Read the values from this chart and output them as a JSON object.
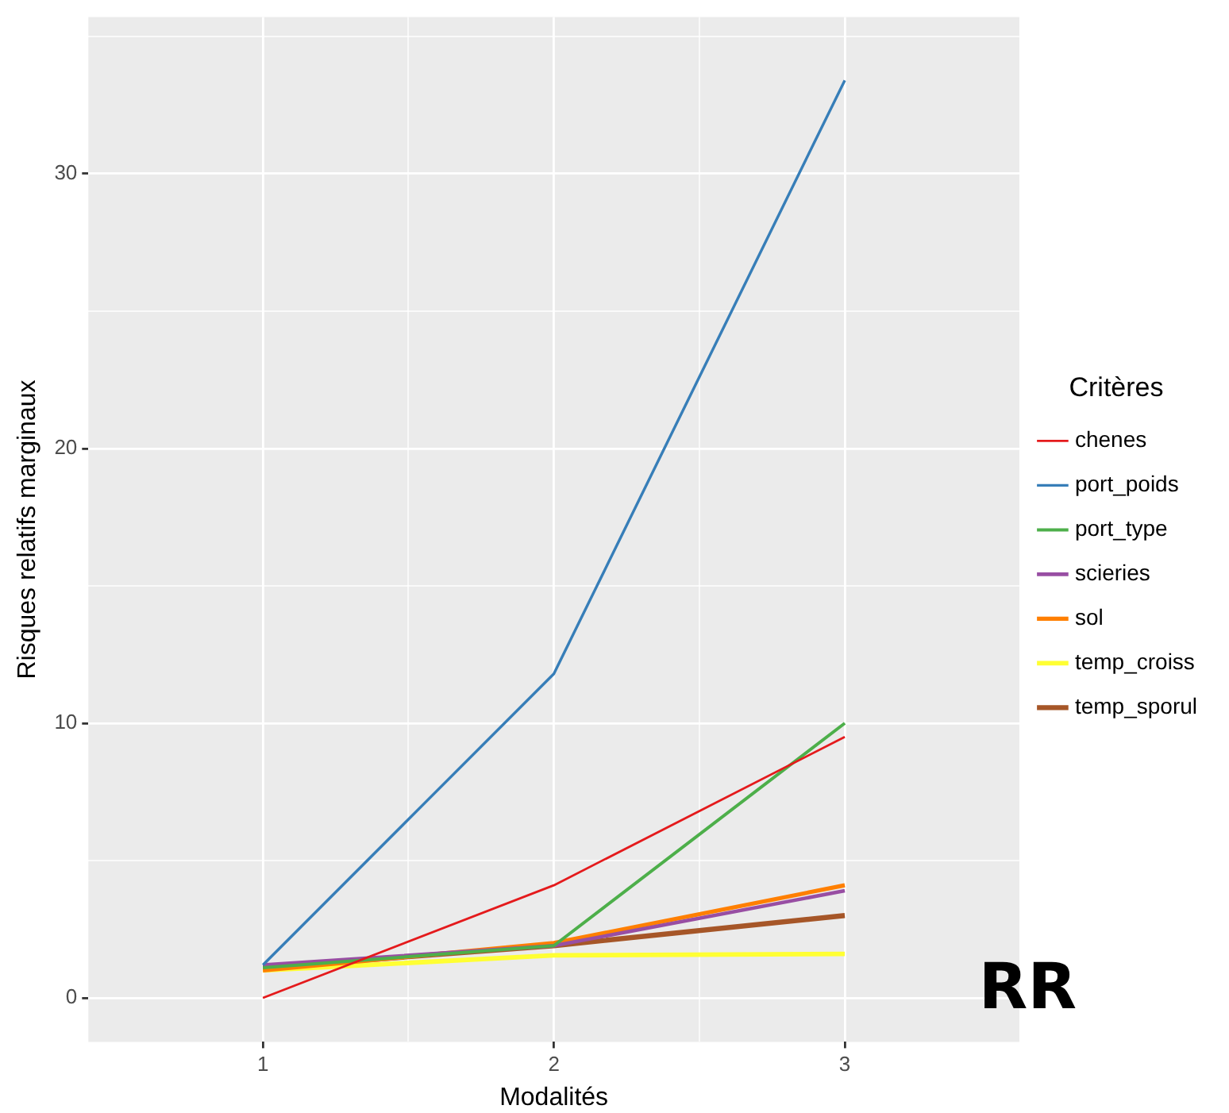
{
  "chart_data": {
    "type": "line",
    "xlabel": "Modalités",
    "ylabel": "Risques relatifs marginaux",
    "legend_title": "Critères",
    "legend": "right",
    "grid": true,
    "marker": "none",
    "line_style": "solid",
    "x": [
      1,
      2,
      3
    ],
    "xlim": [
      0.4,
      3.6
    ],
    "xticks": [
      1,
      {
        "value": 1.5,
        "label": null
      },
      2,
      {
        "value": 2.5,
        "label": null
      },
      3
    ],
    "ylim": [
      -1.6,
      35.7
    ],
    "yticks": [
      0,
      {
        "value": 5,
        "label": null
      },
      10,
      {
        "value": 15,
        "label": null
      },
      20,
      {
        "value": 25,
        "label": null
      },
      30,
      {
        "value": 35,
        "label": null
      }
    ],
    "series": [
      {
        "name": "chenes",
        "color": "#e41a1c",
        "values": [
          0,
          4.1,
          9.5
        ]
      },
      {
        "name": "port_poids",
        "color": "#377eb8",
        "values": [
          1.2,
          11.8,
          33.4
        ]
      },
      {
        "name": "port_type",
        "color": "#4daf4a",
        "values": [
          1.1,
          1.9,
          10
        ]
      },
      {
        "name": "scieries",
        "color": "#984ea3",
        "values": [
          1.2,
          1.9,
          3.9
        ]
      },
      {
        "name": "sol",
        "color": "#ff7f00",
        "values": [
          1.0,
          2.0,
          4.1
        ]
      },
      {
        "name": "temp_croiss",
        "color": "#ffff33",
        "values": [
          1.0,
          1.55,
          1.6
        ]
      },
      {
        "name": "temp_sporul",
        "color": "#a65628",
        "values": [
          1.1,
          1.9,
          3.0
        ]
      }
    ],
    "annotations": [
      "RR"
    ]
  }
}
